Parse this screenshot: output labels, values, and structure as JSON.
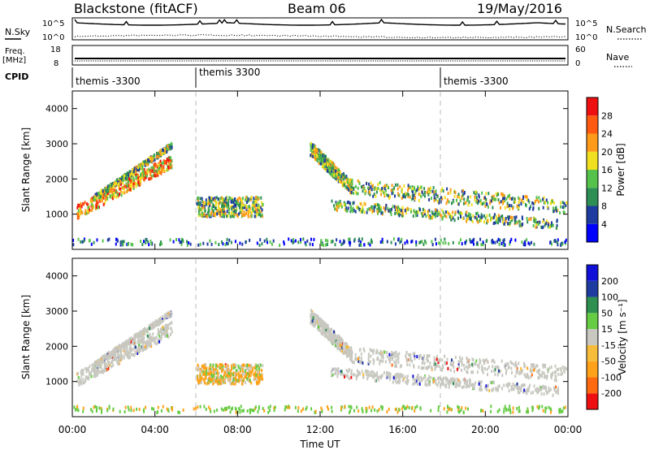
{
  "header": {
    "title": "Blackstone (fitACF)",
    "beam": "Beam 06",
    "date": "19/May/2016"
  },
  "panels": {
    "nsky": {
      "label": "N.Sky",
      "ticks": [
        "10^5",
        "10^0"
      ],
      "right_label": "N.Search",
      "right_ticks": [
        "10^5",
        "10^0"
      ]
    },
    "freq": {
      "label_line1": "Freq.",
      "label_line2": "[MHz]",
      "ticks": [
        "18",
        "8"
      ],
      "right_label": "Nave",
      "right_ticks": [
        "60",
        "0"
      ]
    },
    "cpid": {
      "label": "CPID",
      "segments": [
        "themis -3300",
        "themis 3300",
        "themis -3300"
      ]
    }
  },
  "chart_data": [
    {
      "type": "heatmap",
      "name": "power",
      "ylabel": "Slant Range [km]",
      "yticks": [
        1000,
        2000,
        3000,
        4000
      ],
      "ylim": [
        0,
        4500
      ],
      "xlim": [
        0,
        24
      ],
      "colorbar_label": "Power [dB]",
      "colorbar_ticks": [
        "28",
        "24",
        "20",
        "16",
        "12",
        "8",
        "4"
      ],
      "colorbar_colors": [
        "#0000ff",
        "#1e3ca0",
        "#2d8f54",
        "#55c24c",
        "#f0e020",
        "#ff9a1a",
        "#ff5a10",
        "#ee1010"
      ]
    },
    {
      "type": "heatmap",
      "name": "velocity",
      "ylabel": "Slant Range [km]",
      "yticks": [
        1000,
        2000,
        3000,
        4000
      ],
      "ylim": [
        0,
        4500
      ],
      "xlim": [
        0,
        24
      ],
      "colorbar_label": "Velocity [m s⁻¹]",
      "colorbar_ticks": [
        "200",
        "100",
        "50",
        "15",
        "-15",
        "-50",
        "-100",
        "-200"
      ],
      "colorbar_colors": [
        "#ee1010",
        "#ff6a10",
        "#ffa21a",
        "#f6bc3a",
        "#c8c8c0",
        "#66cc44",
        "#2e8f50",
        "#1e3ca0",
        "#1010d8"
      ]
    }
  ],
  "xaxis": {
    "ticks": [
      "00:00",
      "04:00",
      "08:00",
      "12:00",
      "16:00",
      "20:00",
      "00:00"
    ],
    "label": "Time UT"
  }
}
